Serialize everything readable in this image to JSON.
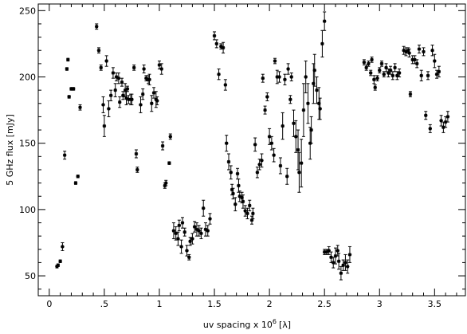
{
  "chart_data": {
    "type": "scatter",
    "xlabel": "uv spacing x 10",
    "xlabel_superscript": "6",
    "xlabel_suffix": "[λ]",
    "ylabel": "5 GHz flux [mJy]",
    "xlim": [
      -0.1,
      3.78
    ],
    "ylim": [
      35,
      255
    ],
    "xticks": [
      0,
      0.5,
      1,
      1.5,
      2,
      2.5,
      3,
      3.5
    ],
    "xtick_labels": [
      "0",
      ".5",
      "1",
      "1.5",
      "2",
      "2.5",
      "3",
      "3.5"
    ],
    "yticks": [
      50,
      100,
      150,
      200,
      250
    ],
    "ytick_labels": [
      "50",
      "100",
      "150",
      "200",
      "250"
    ],
    "grid": false,
    "legend": "none",
    "marker": "asterisk",
    "color": "#000000",
    "points": [
      [
        0.07,
        57,
        1
      ],
      [
        0.08,
        58,
        1
      ],
      [
        0.1,
        61,
        1
      ],
      [
        0.12,
        72,
        3
      ],
      [
        0.14,
        141,
        3
      ],
      [
        0.16,
        206,
        1
      ],
      [
        0.17,
        213,
        1
      ],
      [
        0.18,
        185,
        1
      ],
      [
        0.2,
        191,
        1
      ],
      [
        0.22,
        191,
        1
      ],
      [
        0.24,
        120,
        1
      ],
      [
        0.26,
        125,
        1
      ],
      [
        0.28,
        177,
        2
      ],
      [
        0.43,
        238,
        2
      ],
      [
        0.45,
        220,
        2
      ],
      [
        0.47,
        207,
        2
      ],
      [
        0.49,
        179,
        6
      ],
      [
        0.5,
        163,
        8
      ],
      [
        0.52,
        212,
        4
      ],
      [
        0.54,
        176,
        6
      ],
      [
        0.56,
        186,
        4
      ],
      [
        0.58,
        203,
        4
      ],
      [
        0.6,
        190,
        5
      ],
      [
        0.61,
        200,
        3
      ],
      [
        0.63,
        199,
        4
      ],
      [
        0.64,
        181,
        4
      ],
      [
        0.66,
        196,
        3
      ],
      [
        0.67,
        186,
        3
      ],
      [
        0.69,
        190,
        5
      ],
      [
        0.7,
        184,
        5
      ],
      [
        0.71,
        191,
        2
      ],
      [
        0.72,
        183,
        3
      ],
      [
        0.74,
        183,
        4
      ],
      [
        0.75,
        183,
        4
      ],
      [
        0.77,
        207,
        2
      ],
      [
        0.79,
        142,
        3
      ],
      [
        0.8,
        130,
        2
      ],
      [
        0.83,
        179,
        6
      ],
      [
        0.85,
        187,
        4
      ],
      [
        0.86,
        206,
        3
      ],
      [
        0.88,
        199,
        2
      ],
      [
        0.9,
        198,
        3
      ],
      [
        0.91,
        198,
        4
      ],
      [
        0.93,
        180,
        6
      ],
      [
        0.95,
        188,
        4
      ],
      [
        0.97,
        183,
        6
      ],
      [
        0.98,
        182,
        3
      ],
      [
        1.0,
        209,
        3
      ],
      [
        1.02,
        206,
        4
      ],
      [
        1.03,
        148,
        3
      ],
      [
        1.05,
        118,
        2
      ],
      [
        1.06,
        120,
        2
      ],
      [
        1.09,
        135,
        1
      ],
      [
        1.1,
        155,
        2
      ],
      [
        1.13,
        84,
        6
      ],
      [
        1.15,
        82,
        5
      ],
      [
        1.17,
        78,
        5
      ],
      [
        1.18,
        88,
        4
      ],
      [
        1.2,
        72,
        5
      ],
      [
        1.21,
        90,
        4
      ],
      [
        1.23,
        83,
        3
      ],
      [
        1.25,
        69,
        4
      ],
      [
        1.27,
        64,
        2
      ],
      [
        1.28,
        76,
        3
      ],
      [
        1.3,
        78,
        4
      ],
      [
        1.32,
        87,
        4
      ],
      [
        1.34,
        85,
        5
      ],
      [
        1.36,
        84,
        4
      ],
      [
        1.38,
        82,
        4
      ],
      [
        1.4,
        101,
        6
      ],
      [
        1.42,
        85,
        5
      ],
      [
        1.44,
        84,
        4
      ],
      [
        1.46,
        93,
        4
      ],
      [
        1.5,
        231,
        3
      ],
      [
        1.52,
        225,
        3
      ],
      [
        1.54,
        202,
        4
      ],
      [
        1.56,
        223,
        2
      ],
      [
        1.58,
        222,
        4
      ],
      [
        1.6,
        194,
        4
      ],
      [
        1.61,
        150,
        6
      ],
      [
        1.63,
        136,
        6
      ],
      [
        1.65,
        128,
        5
      ],
      [
        1.66,
        115,
        4
      ],
      [
        1.67,
        112,
        4
      ],
      [
        1.69,
        104,
        5
      ],
      [
        1.71,
        127,
        4
      ],
      [
        1.72,
        118,
        5
      ],
      [
        1.73,
        110,
        4
      ],
      [
        1.75,
        109,
        4
      ],
      [
        1.76,
        106,
        5
      ],
      [
        1.78,
        99,
        4
      ],
      [
        1.8,
        97,
        4
      ],
      [
        1.82,
        103,
        4
      ],
      [
        1.84,
        92,
        3
      ],
      [
        1.85,
        97,
        4
      ],
      [
        1.87,
        149,
        5
      ],
      [
        1.89,
        128,
        4
      ],
      [
        1.91,
        134,
        4
      ],
      [
        1.93,
        137,
        5
      ],
      [
        1.94,
        199,
        3
      ],
      [
        1.96,
        175,
        3
      ],
      [
        1.98,
        185,
        3
      ],
      [
        2.0,
        155,
        6
      ],
      [
        2.02,
        150,
        5
      ],
      [
        2.04,
        141,
        5
      ],
      [
        2.05,
        212,
        2
      ],
      [
        2.07,
        200,
        5
      ],
      [
        2.09,
        200,
        4
      ],
      [
        2.1,
        133,
        6
      ],
      [
        2.12,
        163,
        10
      ],
      [
        2.14,
        198,
        4
      ],
      [
        2.16,
        125,
        6
      ],
      [
        2.17,
        206,
        4
      ],
      [
        2.19,
        183,
        3
      ],
      [
        2.2,
        200,
        3
      ],
      [
        2.22,
        165,
        10
      ],
      [
        2.24,
        155,
        12
      ],
      [
        2.26,
        145,
        15
      ],
      [
        2.27,
        128,
        15
      ],
      [
        2.29,
        135,
        18
      ],
      [
        2.31,
        175,
        20
      ],
      [
        2.33,
        200,
        12
      ],
      [
        2.35,
        180,
        15
      ],
      [
        2.37,
        150,
        12
      ],
      [
        2.38,
        160,
        10
      ],
      [
        2.4,
        195,
        15
      ],
      [
        2.41,
        205,
        12
      ],
      [
        2.43,
        190,
        10
      ],
      [
        2.45,
        180,
        12
      ],
      [
        2.46,
        176,
        8
      ],
      [
        2.48,
        225,
        10
      ],
      [
        2.5,
        242,
        7
      ],
      [
        2.5,
        68,
        2
      ],
      [
        2.52,
        68,
        2
      ],
      [
        2.54,
        69,
        3
      ],
      [
        2.56,
        64,
        4
      ],
      [
        2.58,
        60,
        4
      ],
      [
        2.6,
        65,
        6
      ],
      [
        2.62,
        69,
        4
      ],
      [
        2.63,
        61,
        6
      ],
      [
        2.65,
        52,
        5
      ],
      [
        2.67,
        58,
        4
      ],
      [
        2.69,
        60,
        6
      ],
      [
        2.71,
        57,
        5
      ],
      [
        2.73,
        66,
        6
      ],
      [
        2.86,
        211,
        2
      ],
      [
        2.88,
        207,
        2
      ],
      [
        2.9,
        210,
        2
      ],
      [
        2.92,
        203,
        2
      ],
      [
        2.93,
        213,
        2
      ],
      [
        2.95,
        198,
        3
      ],
      [
        2.96,
        192,
        2
      ],
      [
        2.98,
        199,
        2
      ],
      [
        3.0,
        205,
        2
      ],
      [
        3.02,
        210,
        2
      ],
      [
        3.04,
        202,
        2
      ],
      [
        3.06,
        207,
        3
      ],
      [
        3.08,
        203,
        3
      ],
      [
        3.1,
        205,
        3
      ],
      [
        3.12,
        201,
        3
      ],
      [
        3.14,
        207,
        3
      ],
      [
        3.16,
        201,
        3
      ],
      [
        3.18,
        203,
        3
      ],
      [
        3.22,
        220,
        3
      ],
      [
        3.24,
        219,
        3
      ],
      [
        3.26,
        220,
        2
      ],
      [
        3.27,
        218,
        3
      ],
      [
        3.28,
        187,
        2
      ],
      [
        3.3,
        213,
        3
      ],
      [
        3.32,
        213,
        3
      ],
      [
        3.34,
        210,
        3
      ],
      [
        3.36,
        221,
        3
      ],
      [
        3.38,
        201,
        4
      ],
      [
        3.4,
        219,
        3
      ],
      [
        3.42,
        171,
        3
      ],
      [
        3.44,
        201,
        3
      ],
      [
        3.46,
        161,
        3
      ],
      [
        3.48,
        220,
        4
      ],
      [
        3.5,
        212,
        5
      ],
      [
        3.52,
        202,
        3
      ],
      [
        3.54,
        204,
        4
      ],
      [
        3.56,
        167,
        4
      ],
      [
        3.58,
        162,
        4
      ],
      [
        3.6,
        166,
        4
      ],
      [
        3.62,
        170,
        4
      ]
    ]
  }
}
